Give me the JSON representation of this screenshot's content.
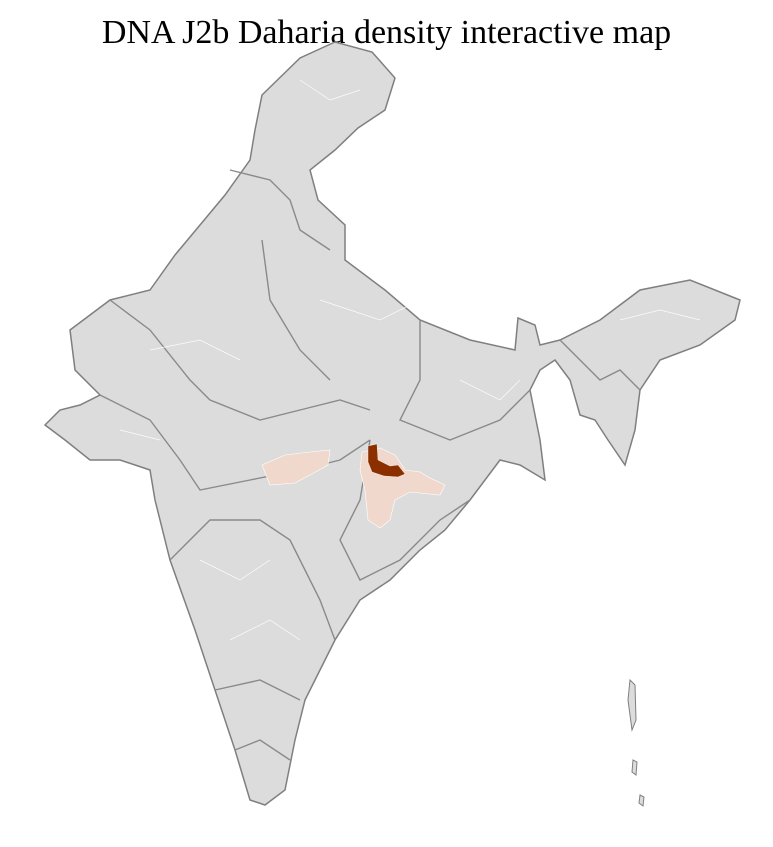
{
  "title": "DNA J2b Daharia density interactive map",
  "colors": {
    "base_fill": "#dcdcdc",
    "district_border": "#ffffff",
    "state_border": "#7f7f7f",
    "low_density": "#f0d9cc",
    "high_density": "#8b2e00"
  },
  "density_levels": [
    "low",
    "high"
  ]
}
